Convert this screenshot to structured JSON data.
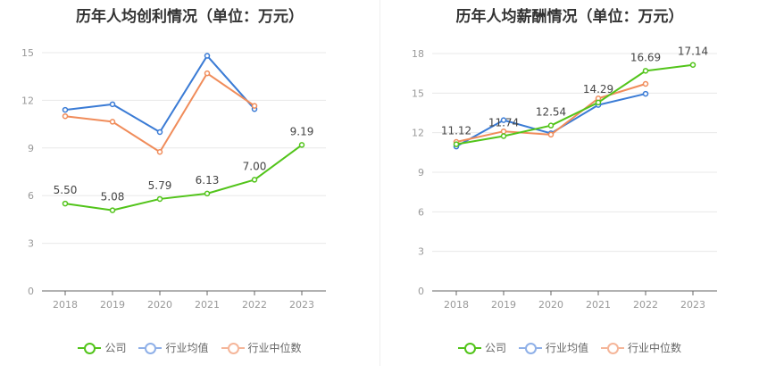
{
  "chart_data": [
    {
      "type": "line",
      "title": "历年人均创利情况（单位：万元）",
      "categories": [
        "2018",
        "2019",
        "2020",
        "2021",
        "2022",
        "2023"
      ],
      "ylim": [
        0,
        15
      ],
      "yticks": [
        0,
        3,
        6,
        9,
        12,
        15
      ],
      "grid": true,
      "legend_position": "bottom",
      "series": [
        {
          "name": "公司",
          "color": "#52c41a",
          "values": [
            5.5,
            5.08,
            5.79,
            6.13,
            7.0,
            9.19
          ],
          "labels": [
            "5.50",
            "5.08",
            "5.79",
            "6.13",
            "7.00",
            "9.19"
          ]
        },
        {
          "name": "行业均值",
          "color": "#3a7bd5",
          "values": [
            11.4,
            11.75,
            10.0,
            14.8,
            11.45,
            null
          ]
        },
        {
          "name": "行业中位数",
          "color": "#f08c5a",
          "values": [
            11.0,
            10.65,
            8.75,
            13.7,
            11.65,
            null
          ]
        }
      ]
    },
    {
      "type": "line",
      "title": "历年人均薪酬情况（单位：万元）",
      "categories": [
        "2018",
        "2019",
        "2020",
        "2021",
        "2022",
        "2023"
      ],
      "ylim": [
        0,
        18
      ],
      "yticks": [
        0,
        3,
        6,
        9,
        12,
        15,
        18
      ],
      "grid": true,
      "legend_position": "bottom",
      "series": [
        {
          "name": "公司",
          "color": "#52c41a",
          "values": [
            11.12,
            11.74,
            12.54,
            14.29,
            16.69,
            17.14
          ],
          "labels": [
            "11.12",
            "11.74",
            "12.54",
            "14.29",
            "16.69",
            "17.14"
          ]
        },
        {
          "name": "行业均值",
          "color": "#3a7bd5",
          "values": [
            10.95,
            12.95,
            11.95,
            14.1,
            14.95,
            null
          ]
        },
        {
          "name": "行业中位数",
          "color": "#f08c5a",
          "values": [
            11.3,
            12.1,
            11.85,
            14.6,
            15.7,
            null
          ]
        }
      ]
    }
  ],
  "legend": {
    "items": [
      {
        "label": "公司",
        "color": "#52c41a"
      },
      {
        "label": "行业均值",
        "color": "#8fb0e8"
      },
      {
        "label": "行业中位数",
        "color": "#f5b69a"
      }
    ]
  }
}
